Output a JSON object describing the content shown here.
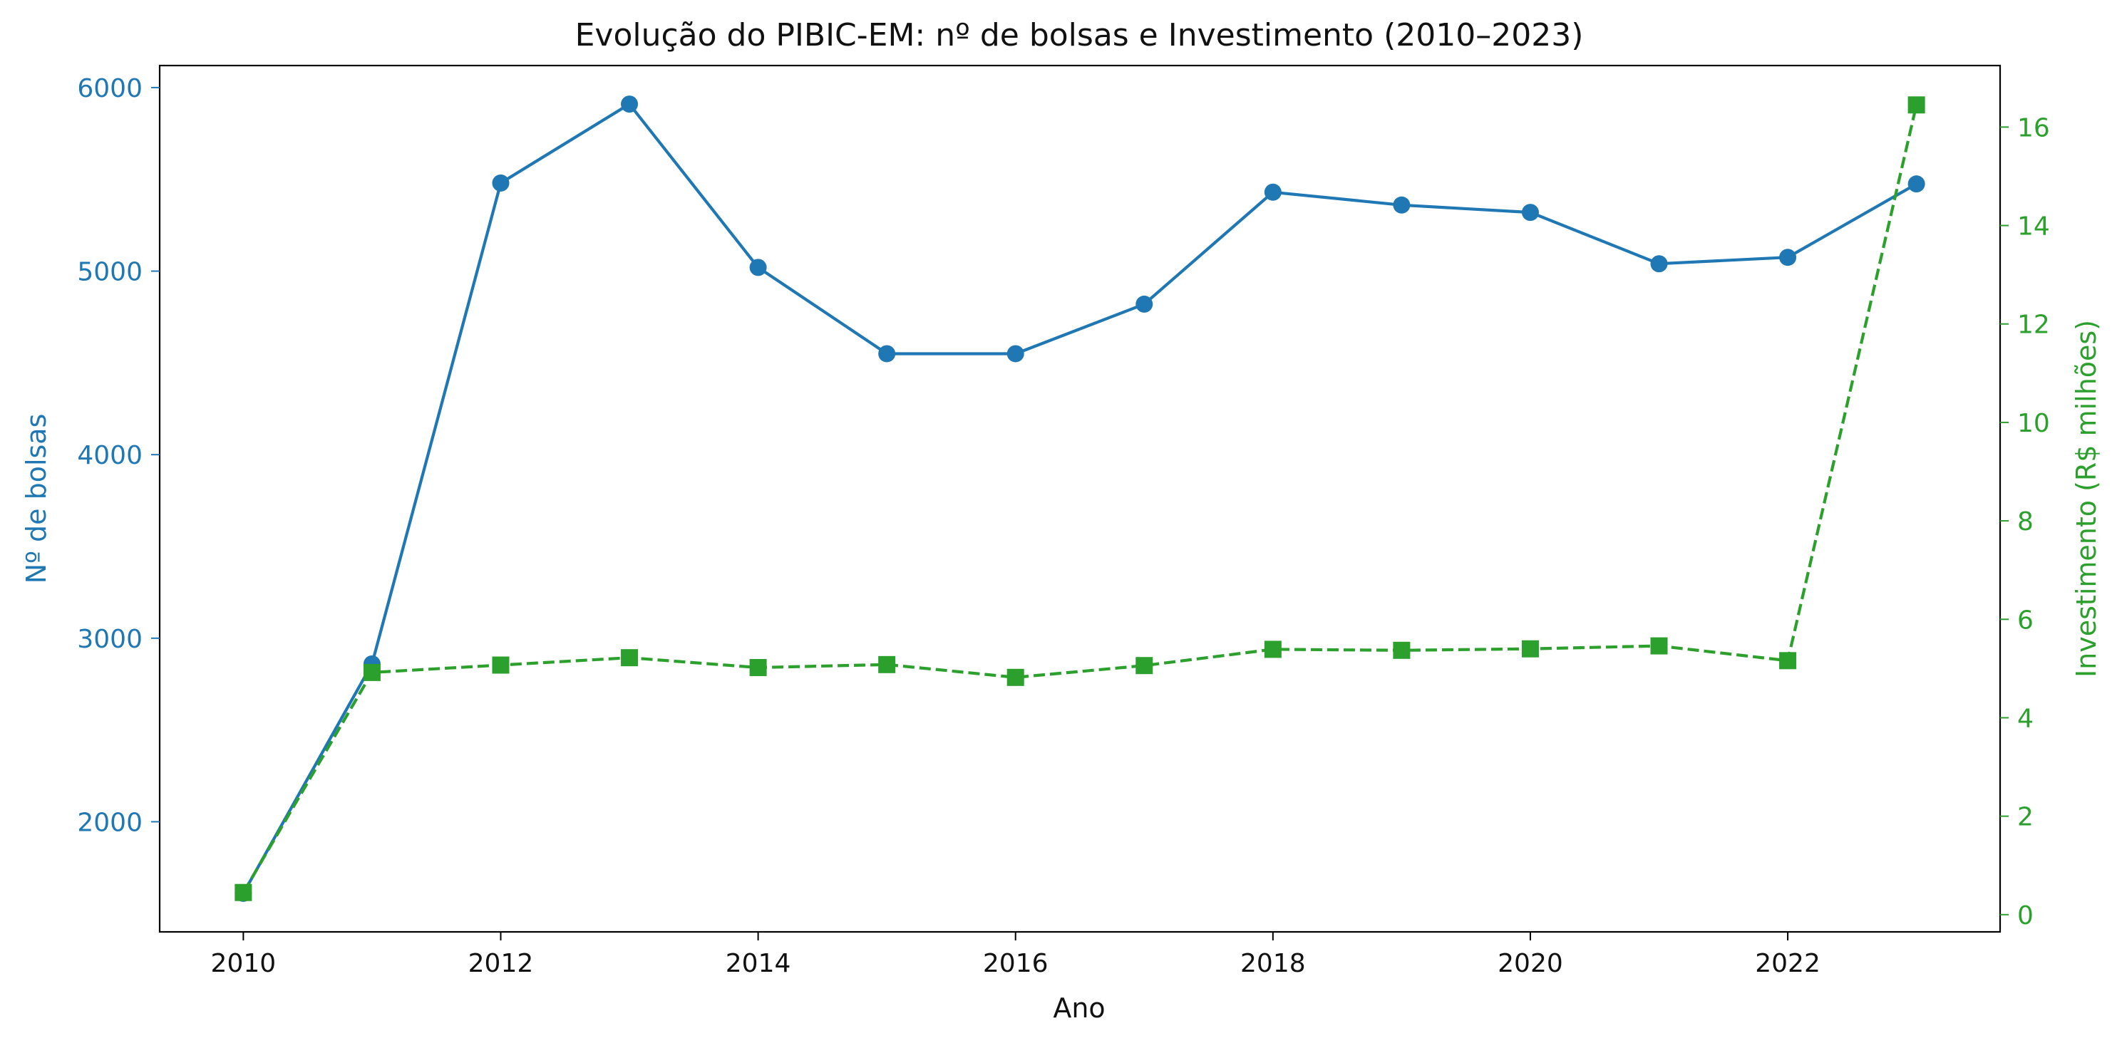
{
  "chart_data": {
    "type": "line",
    "title": "Evolução do PIBIC-EM: nº de bolsas e Investimento (2010–2023)",
    "xlabel": "Ano",
    "x": [
      2010,
      2011,
      2012,
      2013,
      2014,
      2015,
      2016,
      2017,
      2018,
      2019,
      2020,
      2021,
      2022,
      2023
    ],
    "x_ticks": [
      2010,
      2012,
      2014,
      2016,
      2018,
      2020,
      2022
    ],
    "xlim": [
      2009.35,
      2023.65
    ],
    "grid": false,
    "legend": "none",
    "series": [
      {
        "axis": "left",
        "ylabel": "Nº de bolsas",
        "color": "#1f77b4",
        "marker": "circle",
        "linestyle": "solid",
        "ylim": [
          1400,
          6120
        ],
        "y_ticks": [
          2000,
          3000,
          4000,
          5000,
          6000
        ],
        "values": [
          1610,
          2860,
          5480,
          5910,
          5020,
          4550,
          4550,
          4820,
          5430,
          5360,
          5320,
          5040,
          5075,
          5475
        ]
      },
      {
        "axis": "right",
        "ylabel": "Investimento (R$ milhões)",
        "color": "#2ca02c",
        "marker": "square",
        "linestyle": "dashed",
        "ylim": [
          -0.35,
          17.25
        ],
        "y_ticks": [
          0,
          2,
          4,
          6,
          8,
          10,
          12,
          14,
          16
        ],
        "values": [
          0.45,
          4.92,
          5.07,
          5.22,
          5.02,
          5.08,
          4.82,
          5.06,
          5.39,
          5.37,
          5.4,
          5.46,
          5.16,
          16.45
        ]
      }
    ]
  }
}
